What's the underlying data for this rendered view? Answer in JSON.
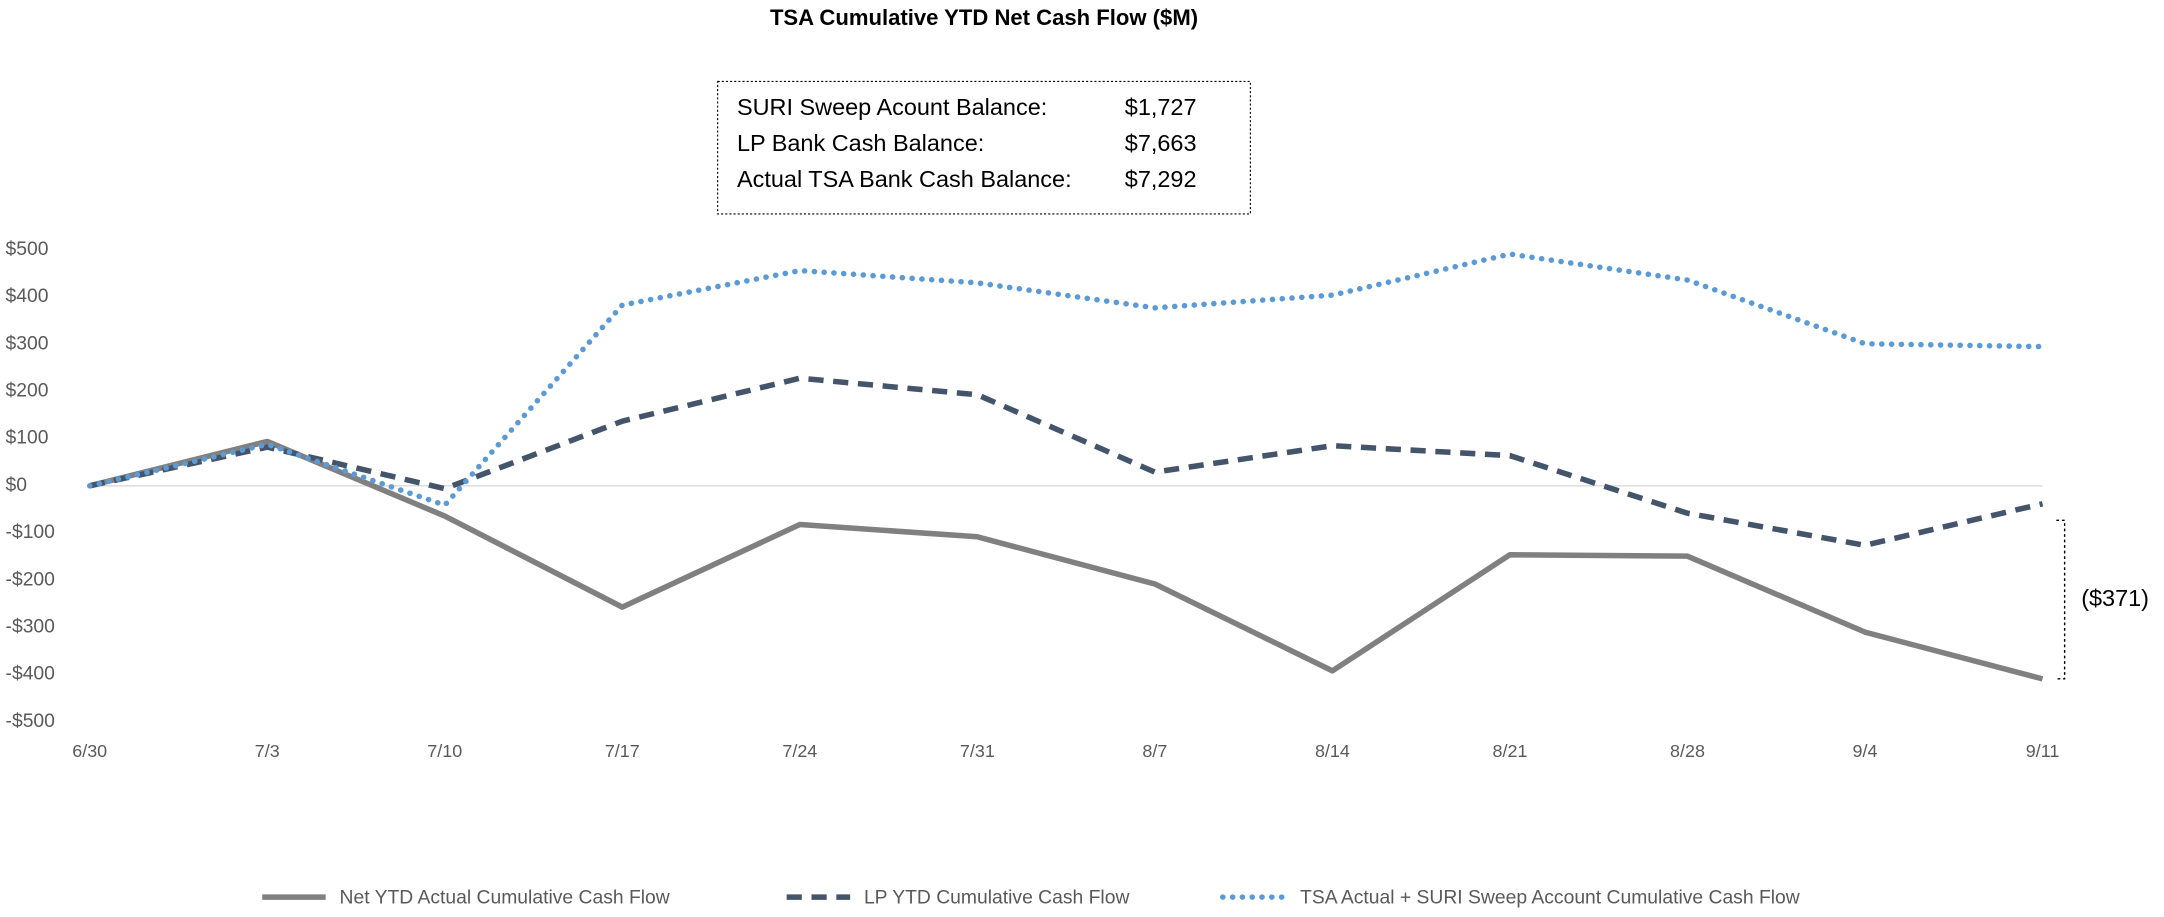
{
  "chart_data": {
    "type": "line",
    "title": "TSA Cumulative YTD Net Cash Flow ($M)",
    "info_box": [
      {
        "label": "SURI Sweep Acount Balance:",
        "value": "$1,727"
      },
      {
        "label": "LP Bank Cash Balance:",
        "value": "$7,663"
      },
      {
        "label": "Actual TSA Bank Cash Balance:",
        "value": "$7,292"
      }
    ],
    "annotation": "($371)",
    "categories": [
      "6/30",
      "7/3",
      "7/10",
      "7/17",
      "7/24",
      "7/31",
      "8/7",
      "8/14",
      "8/21",
      "8/28",
      "9/4",
      "9/11"
    ],
    "series": [
      {
        "name": "Net YTD Actual Cumulative Cash Flow",
        "color": "#808080",
        "style": "solid",
        "values": [
          0,
          94,
          -64,
          -257,
          -82,
          -108,
          -208,
          -392,
          -146,
          -149,
          -310,
          -409
        ]
      },
      {
        "name": "LP YTD Cumulative Cash Flow",
        "color": "#44546a",
        "style": "dashed",
        "values": [
          0,
          82,
          -6,
          137,
          228,
          193,
          29,
          85,
          64,
          -58,
          -126,
          -38
        ]
      },
      {
        "name": "TSA Actual + SURI Sweep Account Cumulative Cash Flow",
        "color": "#5b9bd5",
        "style": "dotted",
        "values": [
          0,
          88,
          -41,
          383,
          456,
          430,
          377,
          404,
          491,
          436,
          301,
          295
        ]
      }
    ],
    "ylim": [
      -500,
      500
    ],
    "yticks": [
      {
        "value": 500,
        "label": "$500"
      },
      {
        "value": 400,
        "label": "$400"
      },
      {
        "value": 300,
        "label": "$300"
      },
      {
        "value": 200,
        "label": "$200"
      },
      {
        "value": 100,
        "label": "$100"
      },
      {
        "value": 0,
        "label": "$0"
      },
      {
        "value": -100,
        "label": "-$100"
      },
      {
        "value": -200,
        "label": "-$200"
      },
      {
        "value": -300,
        "label": "-$300"
      },
      {
        "value": -400,
        "label": "-$400"
      },
      {
        "value": -500,
        "label": "-$500"
      }
    ],
    "zero_line": true
  }
}
